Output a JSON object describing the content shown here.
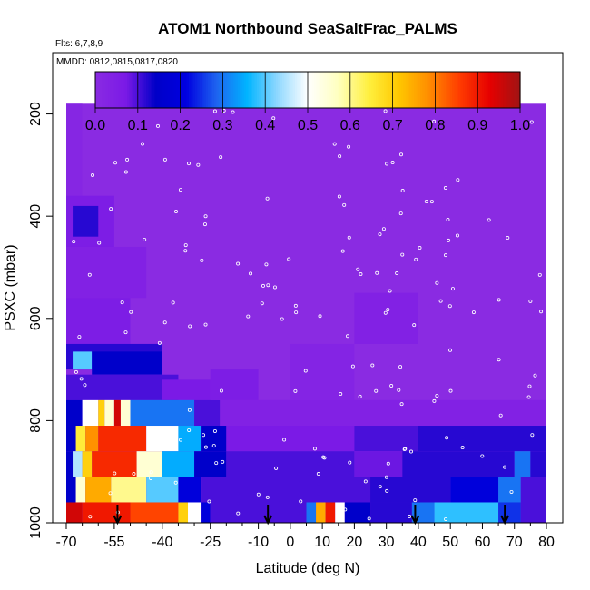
{
  "chart_data": {
    "type": "heatmap",
    "title": "ATOM1 Northbound SeaSaltFrac_PALMS",
    "annotations": {
      "flights": "Flts: 6,7,8,9",
      "dates": "MMDD: 0812,0815,0817,0820"
    },
    "xlabel": "Latitude (deg N)",
    "ylabel": "PSXC (mbar)",
    "xlim": [
      -70,
      80
    ],
    "ylim": [
      1000,
      80
    ],
    "y_reversed": true,
    "x_ticks": [
      "-70",
      "-55",
      "-40",
      "-25",
      "-10",
      "0",
      "10",
      "20",
      "30",
      "40",
      "50",
      "60",
      "70",
      "80"
    ],
    "x_tick_values": [
      -70,
      -55,
      -40,
      -25,
      -10,
      0,
      10,
      20,
      30,
      40,
      50,
      60,
      70,
      80
    ],
    "x_minor_ticks": [
      -65,
      -60,
      -50,
      -45,
      -35,
      -30,
      -20,
      -15,
      -5,
      5,
      15,
      25,
      35,
      45,
      55,
      65,
      75
    ],
    "y_ticks": [
      "200",
      "400",
      "600",
      "800",
      "1000"
    ],
    "y_tick_values": [
      200,
      400,
      600,
      800,
      1000
    ],
    "colorbar": {
      "min": 0.0,
      "max": 1.0,
      "tick_labels": [
        "0.0",
        "0.1",
        "0.2",
        "0.3",
        "0.4",
        "0.5",
        "0.6",
        "0.7",
        "0.8",
        "0.9",
        "1.0"
      ],
      "tick_values": [
        0,
        0.1,
        0.2,
        0.3,
        0.4,
        0.5,
        0.6,
        0.7,
        0.8,
        0.9,
        1.0
      ],
      "colors": [
        "#8a2be2",
        "#7b1ae6",
        "#0000c8",
        "#0000e0",
        "#1e64f0",
        "#00b4ff",
        "#8fd8ff",
        "#ffffff",
        "#ffffc0",
        "#fff040",
        "#ffc800",
        "#ff8c00",
        "#ff3c00",
        "#e60000",
        "#a01414"
      ]
    },
    "background_value": 0.0,
    "domain_top_mbar": 180,
    "cells": [
      {
        "lat": [
          -70,
          -65
        ],
        "p": [
          180,
          360
        ],
        "v": 0.02
      },
      {
        "lat": [
          -70,
          -55
        ],
        "p": [
          360,
          460
        ],
        "v": 0.06
      },
      {
        "lat": [
          -68,
          -60
        ],
        "p": [
          380,
          440
        ],
        "v": 0.12
      },
      {
        "lat": [
          -70,
          -45
        ],
        "p": [
          460,
          560
        ],
        "v": 0.04
      },
      {
        "lat": [
          -70,
          -50
        ],
        "p": [
          560,
          650
        ],
        "v": 0.06
      },
      {
        "lat": [
          -70,
          -40
        ],
        "p": [
          650,
          700
        ],
        "v": 0.12
      },
      {
        "lat": [
          -68,
          -62
        ],
        "p": [
          665,
          700
        ],
        "v": 0.4
      },
      {
        "lat": [
          -62,
          -40
        ],
        "p": [
          665,
          710
        ],
        "v": 0.15
      },
      {
        "lat": [
          -70,
          -35
        ],
        "p": [
          710,
          760
        ],
        "v": 0.1
      },
      {
        "lat": [
          -40,
          -25
        ],
        "p": [
          720,
          760
        ],
        "v": 0.07
      },
      {
        "lat": [
          -70,
          -65
        ],
        "p": [
          760,
          810
        ],
        "v": 0.15
      },
      {
        "lat": [
          -65,
          -60
        ],
        "p": [
          760,
          810
        ],
        "v": 0.5
      },
      {
        "lat": [
          -60,
          -58
        ],
        "p": [
          760,
          810
        ],
        "v": 0.7
      },
      {
        "lat": [
          -58,
          -55
        ],
        "p": [
          760,
          810
        ],
        "v": 0.55
      },
      {
        "lat": [
          -55,
          -53
        ],
        "p": [
          760,
          810
        ],
        "v": 0.95
      },
      {
        "lat": [
          -53,
          -50
        ],
        "p": [
          760,
          810
        ],
        "v": 0.55
      },
      {
        "lat": [
          -50,
          -30
        ],
        "p": [
          760,
          810
        ],
        "v": 0.3
      },
      {
        "lat": [
          -30,
          -22
        ],
        "p": [
          760,
          810
        ],
        "v": 0.1
      },
      {
        "lat": [
          -22,
          80
        ],
        "p": [
          760,
          810
        ],
        "v": 0.04
      },
      {
        "lat": [
          -70,
          -67
        ],
        "p": [
          810,
          860
        ],
        "v": 0.15
      },
      {
        "lat": [
          -67,
          -64
        ],
        "p": [
          810,
          860
        ],
        "v": 0.65
      },
      {
        "lat": [
          -64,
          -60
        ],
        "p": [
          810,
          860
        ],
        "v": 0.78
      },
      {
        "lat": [
          -60,
          -45
        ],
        "p": [
          810,
          860
        ],
        "v": 0.88
      },
      {
        "lat": [
          -45,
          -35
        ],
        "p": [
          810,
          860
        ],
        "v": 0.5
      },
      {
        "lat": [
          -35,
          -28
        ],
        "p": [
          810,
          860
        ],
        "v": 0.35
      },
      {
        "lat": [
          -28,
          -20
        ],
        "p": [
          810,
          860
        ],
        "v": 0.15
      },
      {
        "lat": [
          -20,
          20
        ],
        "p": [
          810,
          860
        ],
        "v": 0.07
      },
      {
        "lat": [
          20,
          40
        ],
        "p": [
          810,
          860
        ],
        "v": 0.1
      },
      {
        "lat": [
          40,
          80
        ],
        "p": [
          810,
          860
        ],
        "v": 0.12
      },
      {
        "lat": [
          -70,
          -68
        ],
        "p": [
          860,
          910
        ],
        "v": 0.15
      },
      {
        "lat": [
          -68,
          -65
        ],
        "p": [
          860,
          910
        ],
        "v": 0.45
      },
      {
        "lat": [
          -65,
          -62
        ],
        "p": [
          860,
          910
        ],
        "v": 0.7
      },
      {
        "lat": [
          -62,
          -48
        ],
        "p": [
          860,
          910
        ],
        "v": 0.88
      },
      {
        "lat": [
          -48,
          -40
        ],
        "p": [
          860,
          910
        ],
        "v": 0.55
      },
      {
        "lat": [
          -40,
          -30
        ],
        "p": [
          860,
          910
        ],
        "v": 0.35
      },
      {
        "lat": [
          -30,
          -20
        ],
        "p": [
          860,
          910
        ],
        "v": 0.15
      },
      {
        "lat": [
          -20,
          20
        ],
        "p": [
          860,
          910
        ],
        "v": 0.1
      },
      {
        "lat": [
          20,
          35
        ],
        "p": [
          860,
          910
        ],
        "v": 0.08
      },
      {
        "lat": [
          35,
          70
        ],
        "p": [
          860,
          910
        ],
        "v": 0.12
      },
      {
        "lat": [
          70,
          75
        ],
        "p": [
          860,
          910
        ],
        "v": 0.3
      },
      {
        "lat": [
          75,
          80
        ],
        "p": [
          860,
          910
        ],
        "v": 0.12
      },
      {
        "lat": [
          -70,
          -67
        ],
        "p": [
          910,
          960
        ],
        "v": 0.15
      },
      {
        "lat": [
          -67,
          -64
        ],
        "p": [
          910,
          960
        ],
        "v": 0.55
      },
      {
        "lat": [
          -64,
          -56
        ],
        "p": [
          910,
          960
        ],
        "v": 0.75
      },
      {
        "lat": [
          -56,
          -45
        ],
        "p": [
          910,
          960
        ],
        "v": 0.6
      },
      {
        "lat": [
          -45,
          -35
        ],
        "p": [
          910,
          960
        ],
        "v": 0.4
      },
      {
        "lat": [
          -35,
          -28
        ],
        "p": [
          910,
          960
        ],
        "v": 0.2
      },
      {
        "lat": [
          -28,
          25
        ],
        "p": [
          910,
          960
        ],
        "v": 0.1
      },
      {
        "lat": [
          25,
          50
        ],
        "p": [
          910,
          960
        ],
        "v": 0.12
      },
      {
        "lat": [
          50,
          65
        ],
        "p": [
          910,
          960
        ],
        "v": 0.2
      },
      {
        "lat": [
          65,
          72
        ],
        "p": [
          910,
          960
        ],
        "v": 0.3
      },
      {
        "lat": [
          72,
          80
        ],
        "p": [
          910,
          960
        ],
        "v": 0.1
      },
      {
        "lat": [
          -70,
          -65
        ],
        "p": [
          960,
          1000
        ],
        "v": 0.95
      },
      {
        "lat": [
          -65,
          -50
        ],
        "p": [
          960,
          1000
        ],
        "v": 0.9
      },
      {
        "lat": [
          -50,
          -35
        ],
        "p": [
          960,
          1000
        ],
        "v": 0.85
      },
      {
        "lat": [
          -35,
          -32
        ],
        "p": [
          960,
          1000
        ],
        "v": 0.7
      },
      {
        "lat": [
          -32,
          -28
        ],
        "p": [
          960,
          1000
        ],
        "v": 0.5
      },
      {
        "lat": [
          -28,
          -25
        ],
        "p": [
          960,
          1000
        ],
        "v": 0.2
      },
      {
        "lat": [
          -25,
          5
        ],
        "p": [
          960,
          1000
        ],
        "v": 0.1
      },
      {
        "lat": [
          5,
          8
        ],
        "p": [
          960,
          1000
        ],
        "v": 0.3
      },
      {
        "lat": [
          8,
          11
        ],
        "p": [
          960,
          1000
        ],
        "v": 0.75
      },
      {
        "lat": [
          11,
          14
        ],
        "p": [
          960,
          1000
        ],
        "v": 0.9
      },
      {
        "lat": [
          14,
          17
        ],
        "p": [
          960,
          1000
        ],
        "v": 0.5
      },
      {
        "lat": [
          17,
          25
        ],
        "p": [
          960,
          1000
        ],
        "v": 0.15
      },
      {
        "lat": [
          25,
          38
        ],
        "p": [
          960,
          1000
        ],
        "v": 0.12
      },
      {
        "lat": [
          38,
          45
        ],
        "p": [
          960,
          1000
        ],
        "v": 0.3
      },
      {
        "lat": [
          45,
          65
        ],
        "p": [
          960,
          1000
        ],
        "v": 0.38
      },
      {
        "lat": [
          65,
          72
        ],
        "p": [
          960,
          1000
        ],
        "v": 0.25
      },
      {
        "lat": [
          72,
          80
        ],
        "p": [
          960,
          1000
        ],
        "v": 0.1
      },
      {
        "lat": [
          -25,
          -10
        ],
        "p": [
          700,
          760
        ],
        "v": 0.06
      },
      {
        "lat": [
          20,
          40
        ],
        "p": [
          550,
          650
        ],
        "v": 0.04
      },
      {
        "lat": [
          0,
          20
        ],
        "p": [
          650,
          760
        ],
        "v": 0.03
      }
    ],
    "arrows_lat": [
      -54,
      -7,
      39,
      67
    ]
  }
}
